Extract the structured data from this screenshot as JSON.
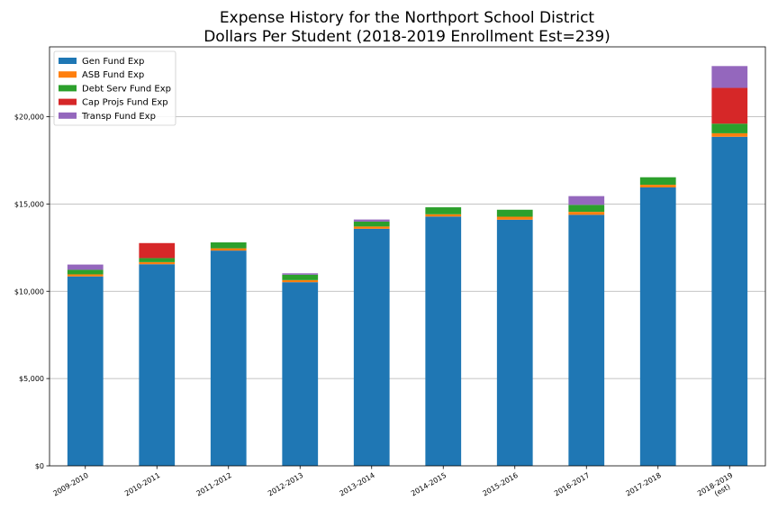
{
  "chart_data": {
    "type": "bar",
    "stacked": true,
    "title": "Expense History for the Northport School District",
    "subtitle": "Dollars Per Student (2018-2019 Enrollment Est=239)",
    "xlabel": "",
    "ylabel": "",
    "categories": [
      "2009-2010",
      "2010-2011",
      "2011-2012",
      "2012-2013",
      "2013-2014",
      "2014-2015",
      "2015-2016",
      "2016-2017",
      "2017-2018",
      "2018-2019\n(est)"
    ],
    "ylim": [
      0,
      24000
    ],
    "yticks": [
      {
        "value": 0,
        "label": "$0"
      },
      {
        "value": 5000,
        "label": "$5,000"
      },
      {
        "value": 10000,
        "label": "$10,000"
      },
      {
        "value": 15000,
        "label": "$15,000"
      },
      {
        "value": 20000,
        "label": "$20,000"
      }
    ],
    "grid": "y",
    "legend_position": "top-left",
    "series": [
      {
        "name": "Gen Fund Exp",
        "color": "#1f77b4",
        "values": [
          10850,
          11550,
          12330,
          10520,
          13580,
          14280,
          14100,
          14380,
          15950,
          18850
        ]
      },
      {
        "name": "ASB Fund Exp",
        "color": "#ff7f0e",
        "values": [
          120,
          120,
          130,
          120,
          130,
          130,
          170,
          170,
          150,
          200
        ]
      },
      {
        "name": "Debt Serv Fund Exp",
        "color": "#2ca02c",
        "values": [
          260,
          230,
          340,
          310,
          280,
          400,
          400,
          400,
          430,
          550
        ]
      },
      {
        "name": "Cap Projs Fund Exp",
        "color": "#d62728",
        "values": [
          0,
          860,
          0,
          0,
          0,
          0,
          0,
          0,
          0,
          2050
        ]
      },
      {
        "name": "Transp Fund Exp",
        "color": "#9467bd",
        "values": [
          300,
          0,
          0,
          80,
          120,
          0,
          0,
          500,
          0,
          1250
        ]
      }
    ]
  }
}
